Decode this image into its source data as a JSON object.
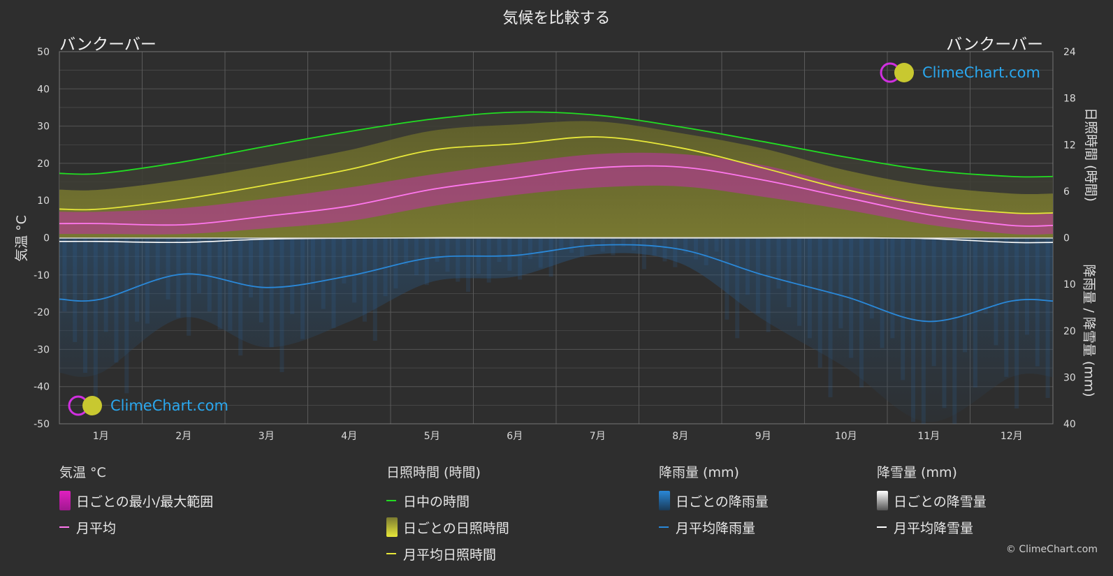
{
  "title": "気候を比較する",
  "city_left": "バンクーバー",
  "city_right": "バンクーバー",
  "logo_text": "ClimeChart.com",
  "copyright": "© ClimeChart.com",
  "axes": {
    "left_label": "気温 °C",
    "right_top_label": "日照時間 (時間)",
    "right_bottom_label": "降雨量 / 降雪量 (mm)",
    "left_ticks": [
      "50",
      "40",
      "30",
      "20",
      "10",
      "0",
      "-10",
      "-20",
      "-30",
      "-40",
      "-50"
    ],
    "right_top_ticks": [
      "24",
      "18",
      "12",
      "6",
      "0"
    ],
    "right_bottom_ticks": [
      "10",
      "20",
      "30",
      "40"
    ]
  },
  "legend": {
    "temp": {
      "head": "気温 °C",
      "range": "日ごとの最小/最大範囲",
      "avg": "月平均"
    },
    "sun": {
      "head": "日照時間 (時間)",
      "daylight": "日中の時間",
      "daily": "日ごとの日照時間",
      "avg": "月平均日照時間"
    },
    "rain": {
      "head": "降雨量 (mm)",
      "daily": "日ごとの降雨量",
      "avg": "月平均降雨量"
    },
    "snow": {
      "head": "降雪量 (mm)",
      "daily": "日ごとの降雪量",
      "avg": "月平均降雪量"
    }
  },
  "colors": {
    "background": "#2e2e2e",
    "daylight": "#22dd22",
    "sunshine": "#e8e83a",
    "temp_avg": "#ff77ee",
    "temp_range": "#e020c0",
    "rain": "#2a88d8",
    "snow": "#ffffff"
  },
  "chart_data": {
    "type": "line",
    "categories": [
      "1月",
      "2月",
      "3月",
      "4月",
      "5月",
      "6月",
      "7月",
      "8月",
      "9月",
      "10月",
      "11月",
      "12月"
    ],
    "ylim_temp": [
      -50,
      50
    ],
    "ylim_sun_hours": [
      0,
      24
    ],
    "ylim_precip_mm": [
      0,
      40
    ],
    "series": [
      {
        "name": "日中の時間",
        "axis": "sun_hours",
        "values": [
          8.3,
          9.8,
          11.8,
          13.7,
          15.3,
          16.2,
          15.8,
          14.3,
          12.4,
          10.4,
          8.7,
          7.9
        ]
      },
      {
        "name": "月平均日照時間",
        "axis": "sun_hours",
        "values": [
          3.7,
          5.0,
          6.8,
          8.8,
          11.3,
          12.1,
          13.0,
          11.6,
          9.0,
          6.2,
          4.2,
          3.2
        ]
      },
      {
        "name": "月平均",
        "axis": "temp",
        "values": [
          3.8,
          3.5,
          5.8,
          8.5,
          13.0,
          16.0,
          18.8,
          19.0,
          15.5,
          10.8,
          6.2,
          3.3
        ]
      },
      {
        "name": "月平均降雪量",
        "axis": "precip_mm",
        "values": [
          0.8,
          1.0,
          0.3,
          0.1,
          0,
          0,
          0,
          0,
          0,
          0,
          0.2,
          1.0
        ]
      },
      {
        "name": "月平均降雨量",
        "axis": "precip_mm",
        "values": [
          13.2,
          7.8,
          10.7,
          8.2,
          4.3,
          3.8,
          1.6,
          2.5,
          8.0,
          12.7,
          18.0,
          13.6
        ]
      }
    ],
    "temp_range": {
      "name": "日ごとの最小/最大範囲",
      "min": [
        1.0,
        1.0,
        2.5,
        4.5,
        8.5,
        11.5,
        13.5,
        13.8,
        11.0,
        7.5,
        3.5,
        1.0
      ],
      "max": [
        7.0,
        8.0,
        10.5,
        13.5,
        17.0,
        20.0,
        22.5,
        22.5,
        19.5,
        14.0,
        9.0,
        6.5
      ]
    }
  }
}
